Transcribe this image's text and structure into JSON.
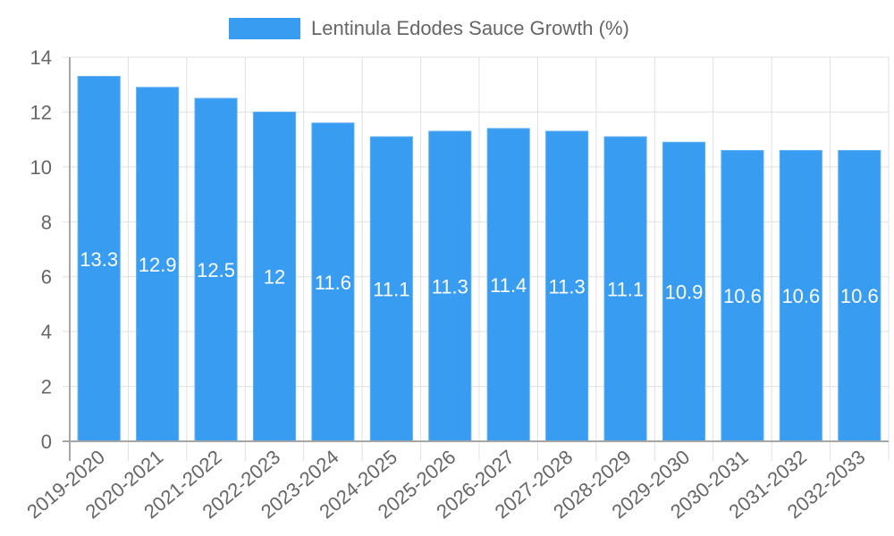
{
  "legend": {
    "label": "Lentinula Edodes Sauce Growth (%)",
    "swatch_color": "#389cf0"
  },
  "colors": {
    "bar_fill": "#389cf0",
    "bar_border": "#5eb0f5",
    "grid": "#e0e0e0",
    "axis": "#a6a6a6",
    "tick_text": "#666666",
    "data_label": "#ffffff"
  },
  "chart_data": {
    "type": "bar",
    "title": "",
    "xlabel": "",
    "ylabel": "",
    "categories": [
      "2019-2020",
      "2020-2021",
      "2021-2022",
      "2022-2023",
      "2023-2024",
      "2024-2025",
      "2025-2026",
      "2026-2027",
      "2027-2028",
      "2028-2029",
      "2029-2030",
      "2030-2031",
      "2031-2032",
      "2032-2033"
    ],
    "series": [
      {
        "name": "Lentinula Edodes Sauce Growth (%)",
        "values": [
          13.3,
          12.9,
          12.5,
          12,
          11.6,
          11.1,
          11.3,
          11.4,
          11.3,
          11.1,
          10.9,
          10.6,
          10.6,
          10.6
        ]
      }
    ],
    "data_labels": [
      "13.3",
      "12.9",
      "12.5",
      "12",
      "11.6",
      "11.1",
      "11.3",
      "11.4",
      "11.3",
      "11.1",
      "10.9",
      "10.6",
      "10.6",
      "10.6"
    ],
    "ylim": [
      0,
      14
    ],
    "yticks": [
      0,
      2,
      4,
      6,
      8,
      10,
      12,
      14
    ],
    "grid": true,
    "legend_position": "top"
  }
}
